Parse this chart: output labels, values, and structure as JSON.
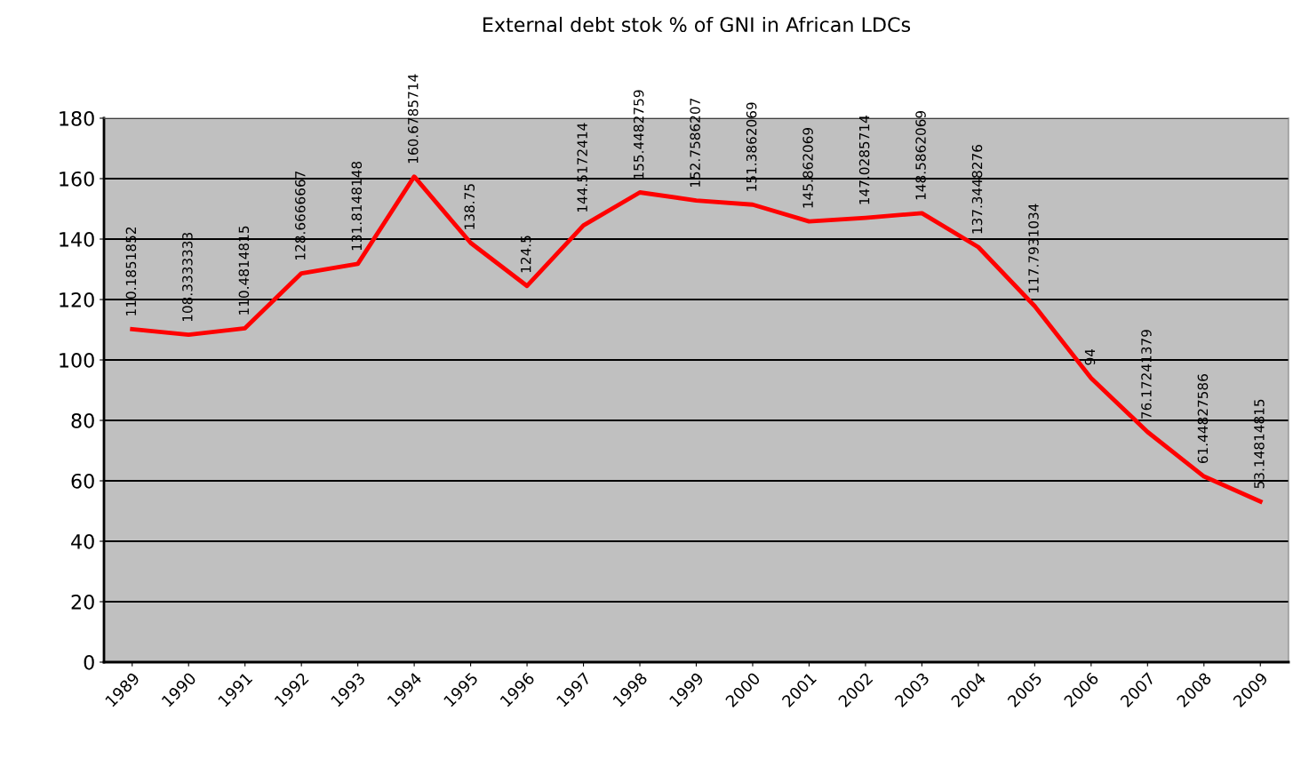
{
  "chart_data": {
    "type": "line",
    "title": "External debt stok % of GNI in African LDCs",
    "categories": [
      "1989",
      "1990",
      "1991",
      "1992",
      "1993",
      "1994",
      "1995",
      "1996",
      "1997",
      "1998",
      "1999",
      "2000",
      "2001",
      "2002",
      "2003",
      "2004",
      "2005",
      "2006",
      "2007",
      "2008",
      "2009"
    ],
    "series": [
      {
        "color": "#ff0000",
        "values": [
          110.1851852,
          108.3333333,
          110.4814815,
          128.6666667,
          131.8148148,
          160.6785714,
          138.75,
          124.5,
          144.5172414,
          155.4482759,
          152.7586207,
          151.3862069,
          145.862069,
          147.0285714,
          148.5862069,
          137.3448276,
          117.7931034,
          94,
          76.17241379,
          61.44827586,
          53.14814815
        ]
      }
    ],
    "ylim": [
      0,
      180
    ],
    "yticks": [
      0,
      20,
      40,
      60,
      80,
      100,
      120,
      140,
      160,
      180
    ],
    "grid": "y",
    "data_labels": true,
    "legend": false,
    "marker": "none",
    "line_style": "solid"
  }
}
